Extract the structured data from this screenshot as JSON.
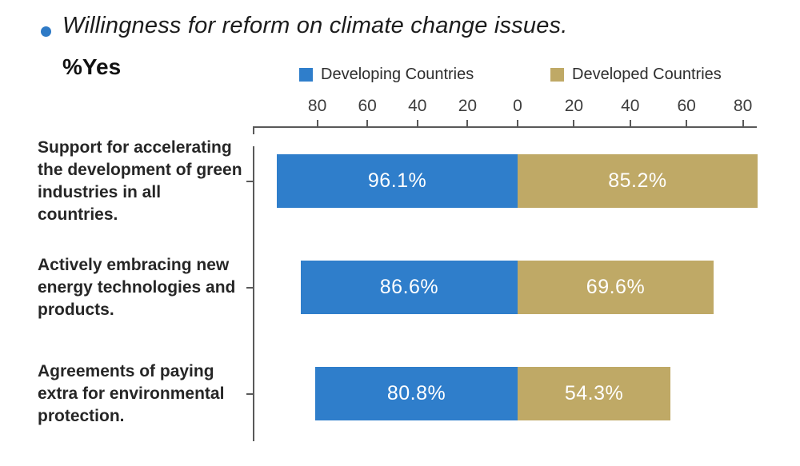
{
  "header": {
    "bullet_color": "#2e7ac6",
    "title": "Willingness for reform on climate change issues.",
    "subtitle": "%Yes"
  },
  "legend": {
    "items": [
      {
        "label": "Developing Countries",
        "color": "#2f7ecb"
      },
      {
        "label": "Developed Countries",
        "color": "#bfa966"
      }
    ]
  },
  "chart_data": {
    "type": "bar",
    "variant": "diverging-horizontal",
    "title": "Willingness for reform on climate change issues.",
    "value_unit_label": "%Yes",
    "categories": [
      "Support for accelerating the development of green industries in all countries.",
      "Actively embracing new energy technologies and products.",
      "Agreements of paying extra for environmental protection."
    ],
    "series": [
      {
        "name": "Developing Countries",
        "side": "left",
        "color": "#2f7ecb",
        "values": [
          96.1,
          86.6,
          80.8
        ]
      },
      {
        "name": "Developed Countries",
        "side": "right",
        "color": "#bfa966",
        "values": [
          85.2,
          69.6,
          54.3
        ]
      }
    ],
    "value_label_suffix": "%",
    "axis": {
      "ticks": [
        80,
        60,
        40,
        20,
        0,
        20,
        40,
        60,
        80
      ],
      "left_range": [
        0,
        80
      ],
      "right_range": [
        0,
        80
      ]
    },
    "legend_position": "top",
    "grid": false
  }
}
